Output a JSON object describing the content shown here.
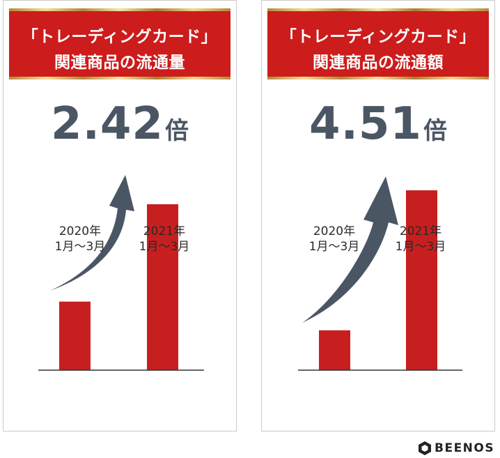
{
  "panels": [
    {
      "title_line1": "「トレーディングカード」",
      "title_line2": "関連商品の流通量",
      "multiplier": "2.42",
      "multiplier_unit": "倍",
      "x_labels": [
        {
          "year": "2020年",
          "period": "1月〜3月"
        },
        {
          "year": "2021年",
          "period": "1月〜3月"
        }
      ]
    },
    {
      "title_line1": "「トレーディングカード」",
      "title_line2": "関連商品の流通額",
      "multiplier": "4.51",
      "multiplier_unit": "倍",
      "x_labels": [
        {
          "year": "2020年",
          "period": "1月〜3月"
        },
        {
          "year": "2021年",
          "period": "1月〜3月"
        }
      ]
    }
  ],
  "chart_data": [
    {
      "type": "bar",
      "title": "「トレーディングカード」関連商品の流通量",
      "categories": [
        "2020年 1月〜3月",
        "2021年 1月〜3月"
      ],
      "values": [
        1,
        2.42
      ],
      "annotation": "2.42倍",
      "bar_color": "#c71f1f",
      "arrow_color": "#4b5664"
    },
    {
      "type": "bar",
      "title": "「トレーディングカード」関連商品の流通額",
      "categories": [
        "2020年 1月〜3月",
        "2021年 1月〜3月"
      ],
      "values": [
        1,
        4.51
      ],
      "annotation": "4.51倍",
      "bar_color": "#c71f1f",
      "arrow_color": "#4b5664"
    }
  ],
  "logo": {
    "text": "BEENOS",
    "icon": "beenos-hex-logo-icon"
  }
}
